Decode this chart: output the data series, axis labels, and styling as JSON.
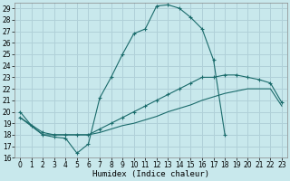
{
  "xlabel": "Humidex (Indice chaleur)",
  "background_color": "#c8e8ec",
  "grid_color": "#b0d0d8",
  "line_color": "#1a6b6b",
  "xlim_min": -0.5,
  "xlim_max": 23.5,
  "ylim_min": 16,
  "ylim_max": 29.5,
  "xtick_vals": [
    0,
    1,
    2,
    3,
    4,
    5,
    6,
    7,
    8,
    9,
    10,
    11,
    12,
    13,
    14,
    15,
    16,
    17,
    18,
    19,
    20,
    21,
    22,
    23
  ],
  "ytick_vals": [
    16,
    17,
    18,
    19,
    20,
    21,
    22,
    23,
    24,
    25,
    26,
    27,
    28,
    29
  ],
  "line1_x": [
    0,
    1,
    2,
    3,
    4,
    5,
    6,
    7,
    8,
    9,
    10,
    11,
    12,
    13,
    14,
    15,
    16,
    17,
    18
  ],
  "line1_y": [
    20.0,
    18.8,
    18.0,
    17.8,
    17.7,
    16.4,
    17.2,
    21.2,
    23.0,
    25.0,
    26.8,
    27.2,
    29.2,
    29.3,
    29.0,
    28.2,
    27.2,
    24.5,
    18.0
  ],
  "line2_x": [
    0,
    2,
    3,
    4,
    5,
    6,
    7,
    8,
    9,
    10,
    11,
    12,
    13,
    14,
    15,
    16,
    17,
    18,
    19,
    20,
    21,
    22,
    23
  ],
  "line2_y": [
    19.5,
    18.2,
    18.0,
    18.0,
    18.0,
    18.0,
    18.5,
    19.0,
    19.5,
    20.0,
    20.5,
    21.0,
    21.5,
    22.0,
    22.5,
    23.0,
    23.0,
    23.2,
    23.2,
    23.0,
    22.8,
    22.5,
    20.8
  ],
  "line3_x": [
    0,
    2,
    3,
    4,
    5,
    6,
    7,
    8,
    9,
    10,
    11,
    12,
    13,
    14,
    15,
    16,
    17,
    18,
    19,
    20,
    21,
    22,
    23
  ],
  "line3_y": [
    19.5,
    18.0,
    18.0,
    18.0,
    18.0,
    18.0,
    18.2,
    18.5,
    18.8,
    19.0,
    19.3,
    19.6,
    20.0,
    20.3,
    20.6,
    21.0,
    21.3,
    21.6,
    21.8,
    22.0,
    22.0,
    22.0,
    20.5
  ],
  "tick_fontsize": 5.5,
  "label_fontsize": 6.5
}
